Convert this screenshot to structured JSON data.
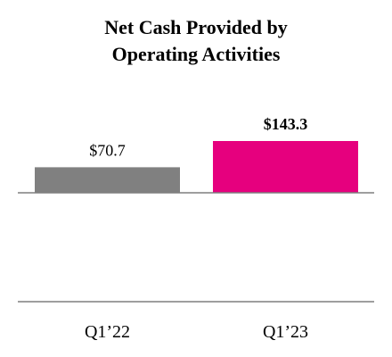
{
  "chart_data": {
    "type": "bar",
    "title_lines": [
      "Net Cash Provided by",
      "Operating Activities"
    ],
    "categories": [
      "Q1’22",
      "Q1’23"
    ],
    "values": [
      70.7,
      143.3
    ],
    "data_labels": [
      "$70.7",
      "$143.3"
    ],
    "bar_colors": [
      "#808080",
      "#E6007E"
    ],
    "label_bold": [
      false,
      true
    ],
    "xlabel": "",
    "ylabel": "",
    "ylim": [
      0,
      143.3
    ],
    "grid": false,
    "legend": "none"
  }
}
